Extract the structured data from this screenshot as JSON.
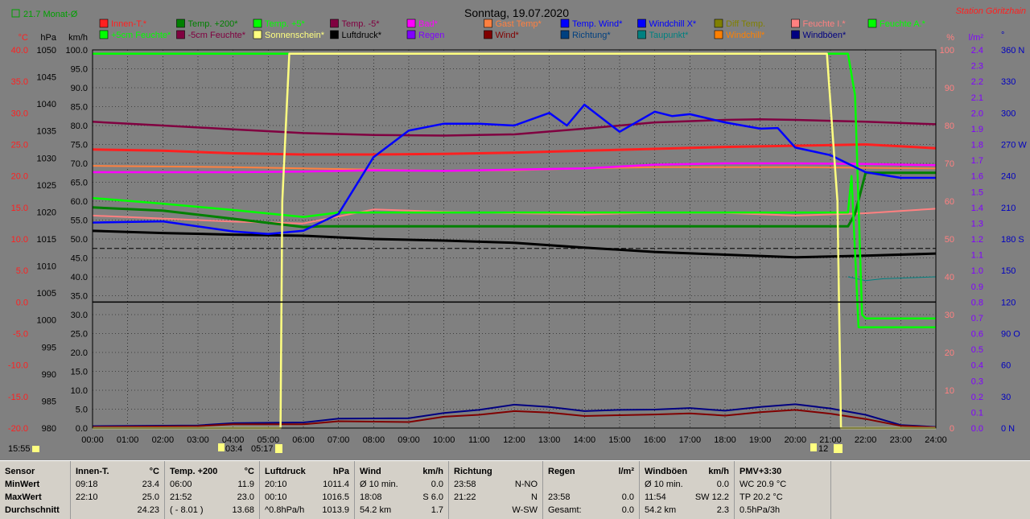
{
  "chart_data": {
    "type": "line",
    "title": "Sonntag, 19.07.2020",
    "station": "Station Göritzhain",
    "month_avg": "21.7 Monat-Ø",
    "x_ticks": [
      "00:00",
      "01:00",
      "02:00",
      "03:00",
      "04:00",
      "05:00",
      "06:00",
      "07:00",
      "08:00",
      "09:00",
      "10:00",
      "11:00",
      "12:00",
      "13:00",
      "14:00",
      "15:00",
      "16:00",
      "17:00",
      "18:00",
      "19:00",
      "20:00",
      "21:00",
      "22:00",
      "23:00",
      "24:00"
    ],
    "axes": {
      "temp": {
        "label": "°C",
        "ticks": [
          "40.0",
          "35.0",
          "30.0",
          "25.0",
          "20.0",
          "15.0",
          "10.0",
          "5.0",
          "0.0",
          "-5.0",
          "-10.0",
          "-15.0",
          "-20.0"
        ],
        "color": "#ff2020"
      },
      "pressure": {
        "label": "hPa",
        "ticks": [
          "1050",
          "1045",
          "1040",
          "1035",
          "1030",
          "1025",
          "1020",
          "1015",
          "1010",
          "1005",
          "1000",
          "995",
          "990",
          "985",
          "980"
        ],
        "color": "#000000"
      },
      "wind": {
        "label": "km/h",
        "ticks": [
          "100.0",
          "95.0",
          "90.0",
          "85.0",
          "80.0",
          "75.0",
          "70.0",
          "65.0",
          "60.0",
          "55.0",
          "50.0",
          "45.0",
          "40.0",
          "35.0",
          "30.0",
          "25.0",
          "20.0",
          "15.0",
          "10.0",
          "5.0",
          "0.0"
        ],
        "color": "#000000"
      },
      "humidity": {
        "label": "%",
        "ticks": [
          "100",
          "90",
          "80",
          "70",
          "60",
          "50",
          "40",
          "30",
          "20",
          "10",
          "0"
        ],
        "color": "#ff8080"
      },
      "rain": {
        "label": "l/m²",
        "ticks": [
          "2.4",
          "2.3",
          "2.2",
          "2.1",
          "2.0",
          "1.9",
          "1.8",
          "1.7",
          "1.6",
          "1.5",
          "1.4",
          "1.3",
          "1.2",
          "1.1",
          "1.0",
          "0.9",
          "0.8",
          "0.7",
          "0.6",
          "0.5",
          "0.4",
          "0.3",
          "0.2",
          "0.1",
          "0.0"
        ],
        "color": "#8000ff"
      },
      "direction": {
        "label": "°",
        "ticks": [
          "360 N",
          "330",
          "300",
          "270 W",
          "240",
          "210",
          "180 S",
          "150",
          "120",
          "90 O",
          "60",
          "30",
          "0 N"
        ],
        "color": "#0000c0"
      }
    },
    "legend": [
      {
        "label": "Innen-T.*",
        "color": "#ff2020"
      },
      {
        "label": "Temp. +200*",
        "color": "#008000"
      },
      {
        "label": "Temp. +5*",
        "color": "#00ff00"
      },
      {
        "label": "Temp. -5*",
        "color": "#800040"
      },
      {
        "label": "Bad*",
        "color": "#ff00ff"
      },
      {
        "label": "Gast Temp*",
        "color": "#ff8040"
      },
      {
        "label": "Temp. Wind*",
        "color": "#0000ff"
      },
      {
        "label": "Windchill X*",
        "color": "#0000ff"
      },
      {
        "label": "Diff Temp.",
        "color": "#808000"
      },
      {
        "label": "Feuchte I.*",
        "color": "#ff8080"
      },
      {
        "label": "Feuchte A.*",
        "color": "#00ff00"
      },
      {
        "label": "+5cm Feuchte*",
        "color": "#00ff00"
      },
      {
        "label": "-5cm Feuchte*",
        "color": "#800040"
      },
      {
        "label": "Sonnenschein*",
        "color": "#ffff80"
      },
      {
        "label": "Luftdruck*",
        "color": "#000000"
      },
      {
        "label": "Regen",
        "color": "#8000ff"
      },
      {
        "label": "Wind*",
        "color": "#800000"
      },
      {
        "label": "Richtung*",
        "color": "#004080"
      },
      {
        "label": "Taupunkt*",
        "color": "#008080"
      },
      {
        "label": "Windchill*",
        "color": "#ff8000"
      },
      {
        "label": "Windböen*",
        "color": "#000080"
      }
    ],
    "series": [
      {
        "name": "Innen-T.*",
        "axis": "temp",
        "x": [
          0,
          2,
          4,
          6,
          8,
          10,
          12,
          14,
          16,
          18,
          20,
          22,
          24
        ],
        "y": [
          24.2,
          24.0,
          23.6,
          23.4,
          23.4,
          23.5,
          23.7,
          24.0,
          24.3,
          24.6,
          24.8,
          25.0,
          24.4
        ]
      },
      {
        "name": "Temp. +200*",
        "axis": "temp",
        "x": [
          0,
          2,
          4,
          6,
          6.5,
          21.5,
          21.7,
          22,
          24
        ],
        "y": [
          15,
          14.5,
          13.2,
          11.9,
          12.0,
          12.0,
          14,
          20.5,
          20.5
        ]
      },
      {
        "name": "Temp. +5*",
        "axis": "temp",
        "x": [
          0,
          2,
          4,
          6,
          7,
          21.5,
          21.6,
          21.8,
          22.5,
          24
        ],
        "y": [
          16.5,
          15.6,
          14.6,
          13.5,
          14.2,
          14.2,
          20,
          -4,
          -4,
          -4
        ]
      },
      {
        "name": "Temp. -5*",
        "axis": "temp",
        "x": [
          0,
          2,
          4,
          6,
          8,
          10,
          12,
          14,
          16,
          18,
          19,
          20,
          22,
          24
        ],
        "y": [
          28.6,
          28,
          27.4,
          26.8,
          26.5,
          26.4,
          26.6,
          27.5,
          28.5,
          28.9,
          29.0,
          28.9,
          28.6,
          28.2
        ]
      },
      {
        "name": "Bad*",
        "axis": "temp",
        "x": [
          0,
          4,
          6,
          8,
          10,
          12,
          14,
          16,
          18,
          20,
          22,
          24
        ],
        "y": [
          20.6,
          20.6,
          20.7,
          20.9,
          20.8,
          21.0,
          21.2,
          21.8,
          22.0,
          22.0,
          21.9,
          21.7
        ]
      },
      {
        "name": "Gast Temp*",
        "axis": "temp",
        "x": [
          0,
          4,
          6,
          8,
          10,
          12,
          14,
          16,
          18,
          20,
          22,
          24
        ],
        "y": [
          21.6,
          21.4,
          21.2,
          21.0,
          20.8,
          20.9,
          21.2,
          21.4,
          21.4,
          21.4,
          21.3,
          21.2
        ]
      },
      {
        "name": "Temp. Wind*",
        "axis": "temp",
        "x": [
          0,
          2,
          4,
          5,
          6,
          7,
          8,
          9,
          10,
          11,
          12,
          13,
          13.5,
          14,
          15,
          16,
          16.5,
          17,
          18,
          19,
          19.5,
          20,
          21,
          22,
          23,
          24
        ],
        "y": [
          12.6,
          12.8,
          11.2,
          10.8,
          11.3,
          14,
          23,
          27.2,
          28.3,
          28.3,
          28.0,
          30,
          28,
          31.3,
          27,
          30.2,
          29.5,
          29.8,
          28.5,
          27.5,
          27.6,
          24.5,
          23.3,
          20.6,
          19.7,
          19.7
        ]
      },
      {
        "name": "Luftdruck*",
        "axis": "pressure",
        "x": [
          0,
          2,
          4,
          6,
          7,
          8,
          10,
          12,
          14,
          16,
          18,
          20,
          22,
          24
        ],
        "y": [
          1016.5,
          1016.1,
          1015.8,
          1015.6,
          1015.3,
          1015.0,
          1014.7,
          1014.3,
          1013.4,
          1012.6,
          1012.1,
          1011.6,
          1011.9,
          1012.3
        ]
      },
      {
        "name": "Sonnenschein*",
        "axis": "wind",
        "x": [
          0,
          5.35,
          5.4,
          5.6,
          6,
          20.9,
          21.2,
          21.3,
          24
        ],
        "y": [
          0,
          0,
          60,
          99,
          99,
          99,
          60,
          0,
          0
        ]
      },
      {
        "name": "Feuchte I.*",
        "axis": "humidity",
        "x": [
          0,
          2,
          4,
          6,
          8,
          10,
          12,
          14,
          16,
          18,
          20,
          22,
          24
        ],
        "y": [
          56.2,
          55.4,
          54.6,
          54.1,
          57.8,
          57.2,
          56.8,
          56.5,
          56.9,
          56.9,
          56.2,
          56.8,
          58.0
        ]
      },
      {
        "name": "Feuchte A.*",
        "axis": "humidity",
        "x": [
          0,
          6,
          6.5,
          21.5,
          21.7,
          21.9,
          22,
          24
        ],
        "y": [
          99,
          99,
          99,
          99,
          88,
          30,
          29,
          29
        ]
      },
      {
        "name": "Taupunkt*",
        "axis": "humidity",
        "x": [
          21.5,
          22,
          22.5,
          24
        ],
        "y": [
          40,
          39,
          39.5,
          40
        ]
      },
      {
        "name": "Wind*",
        "axis": "wind",
        "x": [
          0,
          3,
          4,
          6,
          7,
          9,
          10,
          11,
          12,
          13,
          14,
          15,
          16,
          17,
          18,
          19,
          20,
          21,
          22,
          23,
          24
        ],
        "y": [
          0.3,
          0.5,
          1,
          1,
          1.8,
          1.6,
          3,
          3.5,
          4.5,
          4.1,
          3.2,
          3.4,
          3.6,
          3.9,
          3.3,
          4.2,
          4.8,
          3.8,
          2.4,
          0.6,
          0.2
        ]
      },
      {
        "name": "Windböen*",
        "axis": "wind",
        "x": [
          0,
          3,
          4,
          6,
          7,
          9,
          10,
          11,
          12,
          13,
          14,
          15,
          16,
          17,
          18,
          19,
          20,
          21,
          22,
          23,
          24
        ],
        "y": [
          0.5,
          0.7,
          1.3,
          1.5,
          2.5,
          2.6,
          4,
          4.8,
          6.2,
          5.6,
          4.5,
          4.8,
          4.9,
          5.3,
          4.6,
          5.6,
          6.3,
          5.2,
          3.5,
          0.8,
          0.3
        ]
      }
    ],
    "bottom_markers": {
      "left_time": "15:55",
      "sunrise": "03:4",
      "sunrise2": "05:17",
      "sunset": "12"
    }
  },
  "stats": {
    "row_labels": [
      "Sensor",
      "MinWert",
      "MaxWert",
      "Durchschnitt"
    ],
    "cols": [
      {
        "title": "Innen-T.",
        "unit": "°C",
        "rows": [
          [
            "09:18",
            "23.4"
          ],
          [
            "22:10",
            "25.0"
          ],
          [
            "",
            "24.23"
          ]
        ]
      },
      {
        "title": "Temp. +200",
        "unit": "°C",
        "rows": [
          [
            "06:00",
            "11.9"
          ],
          [
            "21:52",
            "23.0"
          ],
          [
            "( - 8.01 )",
            "13.68"
          ]
        ]
      },
      {
        "title": "Luftdruck",
        "unit": "hPa",
        "rows": [
          [
            "20:10",
            "1011.4"
          ],
          [
            "00:10",
            "1016.5"
          ],
          [
            "^0.8hPa/h",
            "1013.9"
          ]
        ]
      },
      {
        "title": "Wind",
        "unit": "km/h",
        "rows": [
          [
            "Ø 10 min.",
            "0.0"
          ],
          [
            "18:08",
            "S 6.0"
          ],
          [
            "54.2 km",
            "1.7"
          ]
        ]
      },
      {
        "title": "Richtung",
        "unit": "",
        "rows": [
          [
            "23:58",
            "N-NO"
          ],
          [
            "21:22",
            "N"
          ],
          [
            "",
            "W-SW"
          ]
        ]
      },
      {
        "title": "Regen",
        "unit": "l/m²",
        "rows": [
          [
            "",
            ""
          ],
          [
            "23:58",
            "0.0"
          ],
          [
            "Gesamt:",
            "0.0"
          ]
        ]
      },
      {
        "title": "Windböen",
        "unit": "km/h",
        "rows": [
          [
            "Ø 10 min.",
            "0.0"
          ],
          [
            "11:54",
            "SW 12.2"
          ],
          [
            "54.2 km",
            "2.3"
          ]
        ]
      },
      {
        "title": "PMV+3:30",
        "unit": "",
        "rows": [
          [
            "WC 20.9 °C",
            ""
          ],
          [
            "TP 20.2 °C",
            ""
          ],
          [
            "0.5hPa/3h",
            ""
          ]
        ]
      }
    ]
  }
}
